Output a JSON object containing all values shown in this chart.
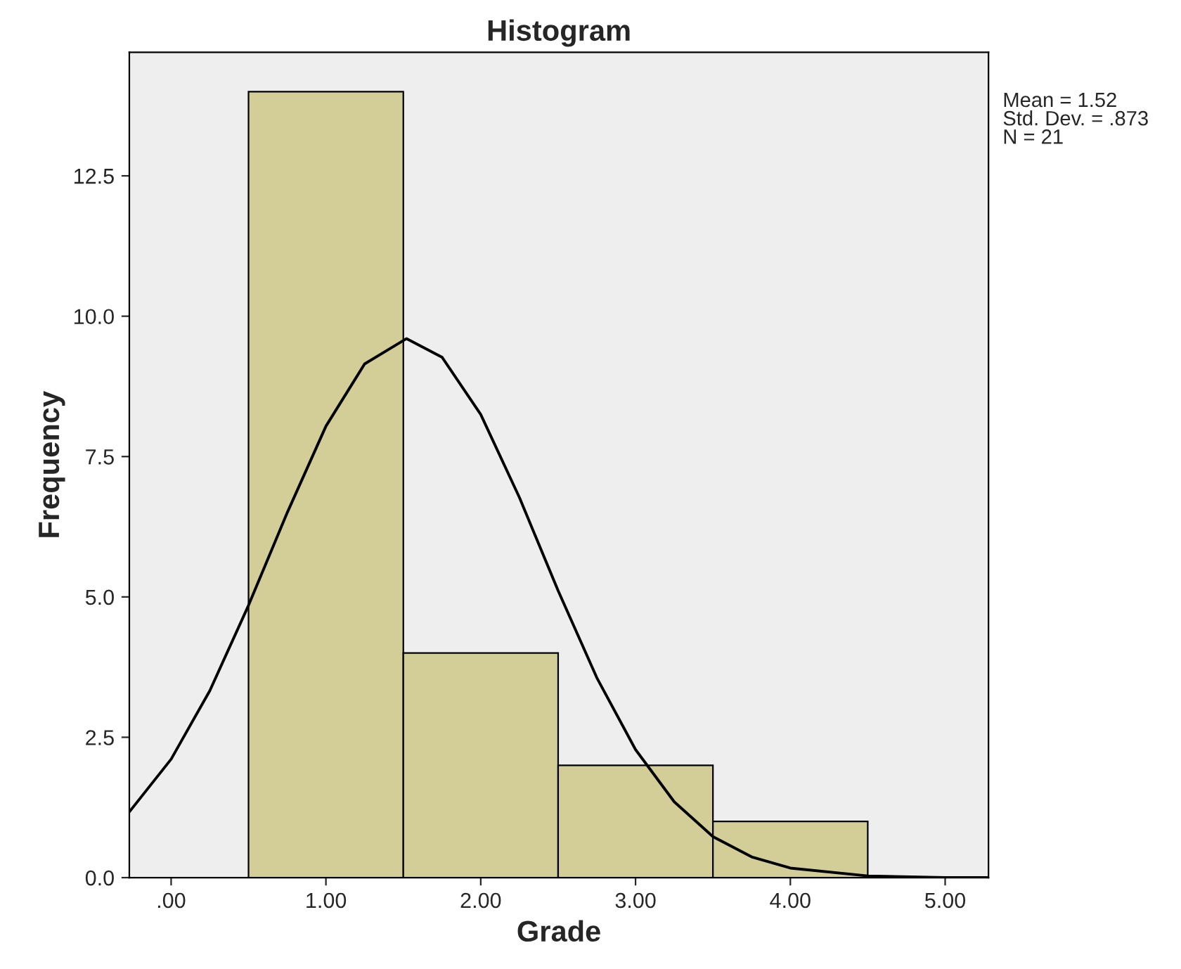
{
  "chart_data": {
    "type": "histogram",
    "title": "Histogram",
    "xlabel": "Grade",
    "ylabel": "Frequency",
    "bins": [
      0.5,
      1.5,
      2.5,
      3.5,
      4.5
    ],
    "values": [
      14,
      4,
      2,
      1
    ],
    "color": "#d3ce97",
    "series": [
      {
        "type": "line",
        "color": "#000000",
        "x": [
          -0.27,
          0,
          0.25,
          0.5,
          0.75,
          1.0,
          1.25,
          1.52,
          1.75,
          2.0,
          2.25,
          2.5,
          2.75,
          3.0,
          3.25,
          3.5,
          3.75,
          4.0,
          4.5,
          5.0,
          5.28
        ],
        "values": [
          1.17,
          2.11,
          3.33,
          4.85,
          6.5,
          8.04,
          9.15,
          9.6,
          9.27,
          8.25,
          6.77,
          5.11,
          3.56,
          2.28,
          1.35,
          0.73,
          0.37,
          0.17,
          0.03,
          0.0,
          0.0
        ]
      }
    ],
    "xlim": [
      -0.27,
      5.28
    ],
    "ylim": [
      0,
      14.7
    ],
    "xticks": [
      {
        "value": 0,
        "label": ".00"
      },
      {
        "value": 1,
        "label": "1.00"
      },
      {
        "value": 2,
        "label": "2.00"
      },
      {
        "value": 3,
        "label": "3.00"
      },
      {
        "value": 4,
        "label": "4.00"
      },
      {
        "value": 5,
        "label": "5.00"
      }
    ],
    "yticks": [
      {
        "value": 0,
        "label": "0.0"
      },
      {
        "value": 2.5,
        "label": "2.5"
      },
      {
        "value": 5,
        "label": "5.0"
      },
      {
        "value": 7.5,
        "label": "7.5"
      },
      {
        "value": 10,
        "label": "10.0"
      },
      {
        "value": 12.5,
        "label": "12.5"
      }
    ],
    "grid": false,
    "annotations": [
      "Mean = 1.52",
      "Std. Dev. = .873",
      "N = 21"
    ]
  }
}
